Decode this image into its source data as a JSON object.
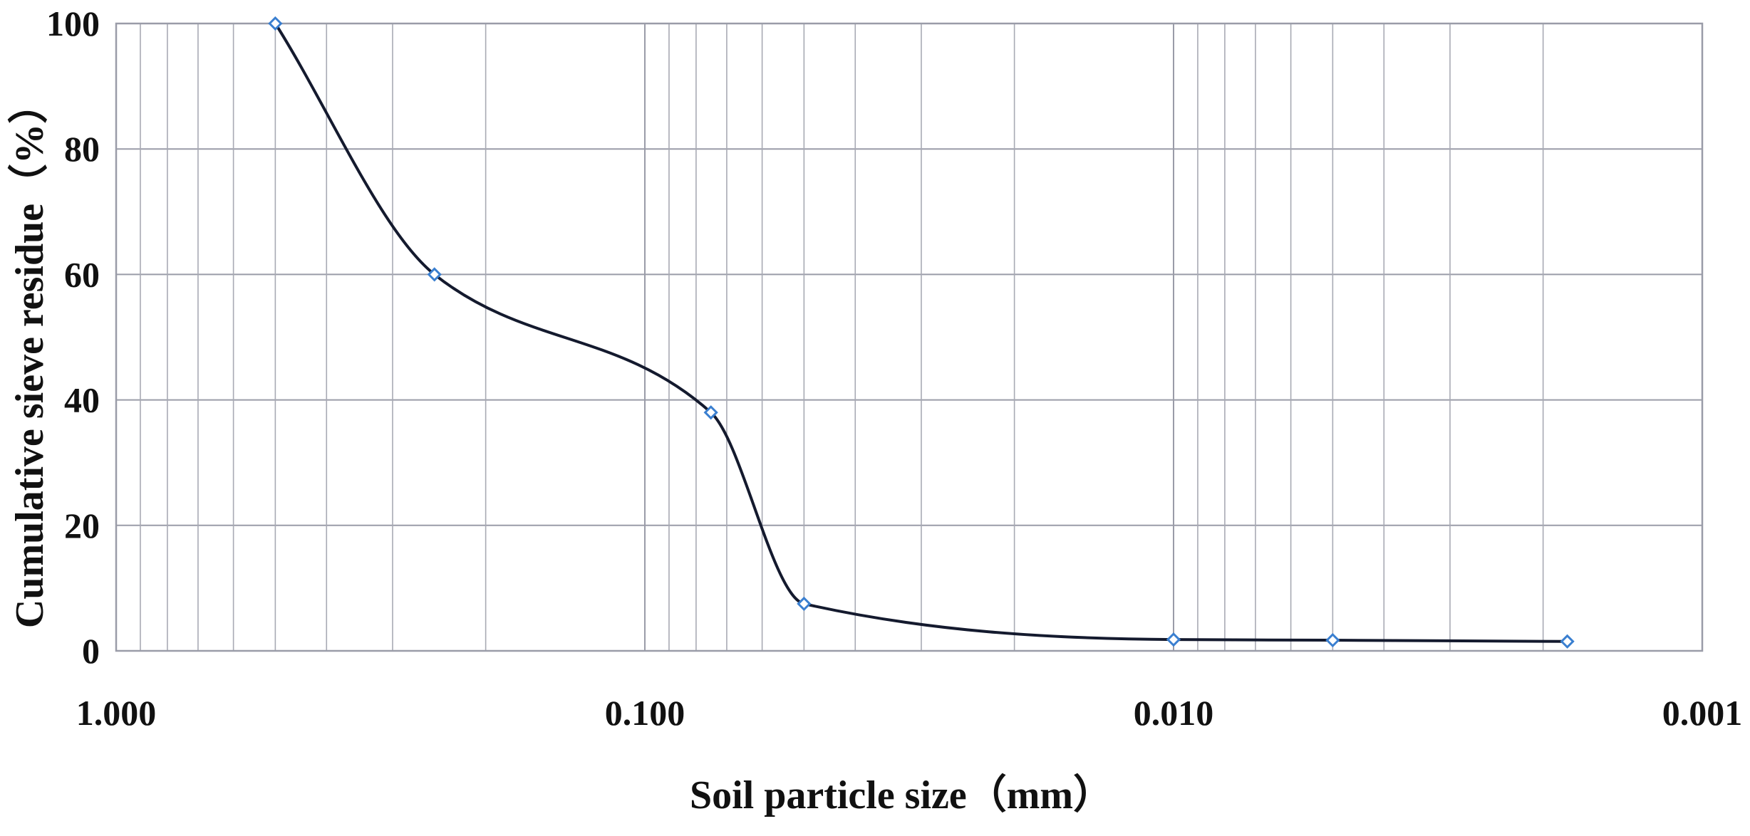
{
  "chart_data": {
    "type": "line",
    "xlabel": "Soil particle size（mm）",
    "ylabel": "Cumulative sieve residue（%）",
    "x_scale": "log-reversed",
    "xlim": [
      1.0,
      0.001
    ],
    "ylim": [
      0,
      100
    ],
    "x_ticks": [
      1.0,
      0.1,
      0.01,
      0.001
    ],
    "x_tick_labels": [
      "1.000",
      "0.100",
      "0.010",
      "0.001"
    ],
    "y_ticks": [
      0,
      20,
      40,
      60,
      80,
      100
    ],
    "y_tick_labels": [
      "0",
      "20",
      "40",
      "60",
      "80",
      "100"
    ],
    "grid": true,
    "colors": {
      "line": "#141a2e",
      "marker_edge": "#3a7fd0",
      "grid": "#9a9ca8"
    },
    "series": [
      {
        "x": [
          0.5,
          0.25,
          0.075,
          0.05,
          0.01,
          0.005,
          0.0018
        ],
        "y": [
          100,
          60,
          38,
          7.5,
          1.8,
          1.7,
          1.5
        ]
      }
    ]
  }
}
